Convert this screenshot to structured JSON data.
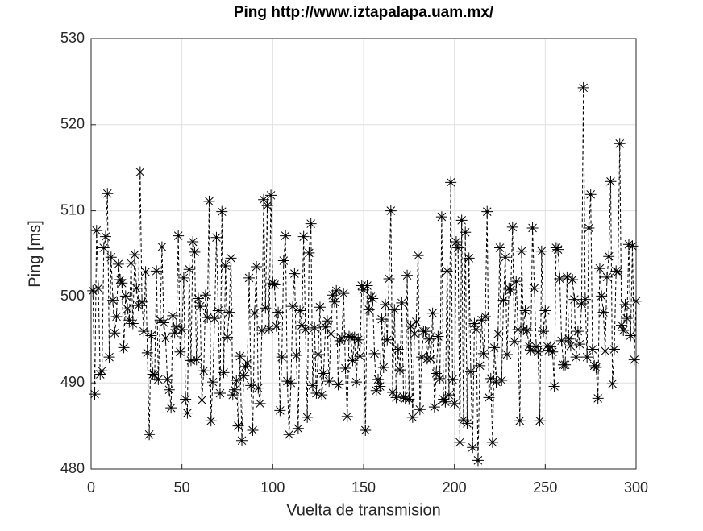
{
  "chart_data": {
    "type": "line",
    "title": "Ping http://www.iztapalapa.uam.mx/",
    "xlabel": "Vuelta de transmision",
    "ylabel": "Ping [ms]",
    "x": [
      1,
      2,
      3,
      4,
      5,
      6,
      7,
      8,
      9,
      10,
      11,
      12,
      13,
      14,
      15,
      16,
      17,
      18,
      19,
      20,
      21,
      22,
      23,
      24,
      25,
      26,
      27,
      28,
      29,
      30,
      31,
      32,
      33,
      34,
      35,
      36,
      37,
      38,
      39,
      40,
      41,
      42,
      43,
      44,
      45,
      46,
      47,
      48,
      49,
      50,
      51,
      52,
      53,
      54,
      55,
      56,
      57,
      58,
      59,
      60,
      61,
      62,
      63,
      64,
      65,
      66,
      67,
      68,
      69,
      70,
      71,
      72,
      73,
      74,
      75,
      76,
      77,
      78,
      79,
      80,
      81,
      82,
      83,
      84,
      85,
      86,
      87,
      88,
      89,
      90,
      91,
      92,
      93,
      94,
      95,
      96,
      97,
      98,
      99,
      100,
      101,
      102,
      103,
      104,
      105,
      106,
      107,
      108,
      109,
      110,
      111,
      112,
      113,
      114,
      115,
      116,
      117,
      118,
      119,
      120,
      121,
      122,
      123,
      124,
      125,
      126,
      127,
      128,
      129,
      130,
      131,
      132,
      133,
      134,
      135,
      136,
      137,
      138,
      139,
      140,
      141,
      142,
      143,
      144,
      145,
      146,
      147,
      148,
      149,
      150,
      151,
      152,
      153,
      154,
      155,
      156,
      157,
      158,
      159,
      160,
      161,
      162,
      163,
      164,
      165,
      166,
      167,
      168,
      169,
      170,
      171,
      172,
      173,
      174,
      175,
      176,
      177,
      178,
      179,
      180,
      181,
      182,
      183,
      184,
      185,
      186,
      187,
      188,
      189,
      190,
      191,
      192,
      193,
      194,
      195,
      196,
      197,
      198,
      199,
      200,
      201,
      202,
      203,
      204,
      205,
      206,
      207,
      208,
      209,
      210,
      211,
      212,
      213,
      214,
      215,
      216,
      217,
      218,
      219,
      220,
      221,
      222,
      223,
      224,
      225,
      226,
      227,
      228,
      229,
      230,
      231,
      232,
      233,
      234,
      235,
      236,
      237,
      238,
      239,
      240,
      241,
      242,
      243,
      244,
      245,
      246,
      247,
      248,
      249,
      250,
      251,
      252,
      253,
      254,
      255,
      256,
      257,
      258,
      259,
      260,
      261,
      262,
      263,
      264,
      265,
      266,
      267,
      268,
      269,
      270,
      271,
      272,
      273,
      274,
      275,
      276,
      277,
      278,
      279,
      280,
      281,
      282,
      283,
      284,
      285,
      286,
      287,
      288,
      289,
      290,
      291,
      292,
      293,
      294,
      295,
      296,
      297,
      298,
      299,
      300
    ],
    "values": [
      500.7,
      488.7,
      507.7,
      501,
      491,
      491.4,
      505.7,
      507,
      512,
      493,
      504.6,
      499.6,
      495.8,
      497.7,
      503.8,
      502,
      501.6,
      494.1,
      500.1,
      498.6,
      497.3,
      503.9,
      496.9,
      504.9,
      501,
      499,
      514.5,
      499.4,
      496,
      502.9,
      493.5,
      484,
      495.5,
      491,
      490.9,
      503,
      490.4,
      497.3,
      505.8,
      497,
      495.2,
      490.4,
      489.2,
      487.1,
      497.8,
      495.8,
      496.5,
      507.1,
      493.6,
      496.2,
      502.2,
      488.1,
      486.5,
      503.2,
      492.6,
      506.4,
      505.2,
      492.7,
      499.8,
      498.9,
      488,
      491.4,
      500.2,
      497.6,
      511.1,
      485.6,
      490.1,
      497.5,
      506.9,
      498.4,
      488.8,
      509.9,
      491.2,
      503.6,
      495.3,
      498.2,
      504.5,
      488.6,
      489.2,
      490.3,
      485,
      493.1,
      483.3,
      490.8,
      491.9,
      492.3,
      502.2,
      489.7,
      484.5,
      498.1,
      503.5,
      489.4,
      487.6,
      496.1,
      511.3,
      498.7,
      510.6,
      496.3,
      511.8,
      501.6,
      501.4,
      496.6,
      498.2,
      486.8,
      493,
      504.2,
      507.1,
      490.2,
      484,
      490,
      498.9,
      502.7,
      493.2,
      484.7,
      498.4,
      496.7,
      507,
      496.2,
      486,
      505.1,
      508.5,
      489.7,
      496.4,
      488.8,
      493.3,
      498.8,
      488.6,
      491.1,
      496.5,
      497.2,
      490.2,
      495.7,
      500.2,
      499.4,
      500.7,
      489.8,
      494.9,
      495.2,
      500.4,
      491.7,
      486.1,
      495.4,
      495.3,
      492.6,
      495.3,
      490.1,
      495,
      493.1,
      501.3,
      500.8,
      484.5,
      501.3,
      498.5,
      500,
      499.8,
      493.4,
      489.1,
      490.4,
      489.6,
      497.4,
      491.8,
      499.1,
      495,
      502.1,
      510,
      488.9,
      498.5,
      488.3,
      493.9,
      491.5,
      499.3,
      488.4,
      488.2,
      502.5,
      488.1,
      496.6,
      486,
      495.7,
      497.1,
      504.8,
      486.9,
      493,
      496,
      496,
      492.8,
      495.1,
      492.8,
      498.1,
      487.2,
      491.1,
      495.4,
      490.5,
      509.3,
      488.1,
      487.8,
      503,
      488.6,
      513.3,
      490.4,
      487.6,
      506.4,
      505.7,
      483.1,
      508.9,
      485.7,
      507.5,
      485.3,
      504.5,
      491.3,
      482.5,
      496.9,
      496.2,
      481,
      492,
      497.3,
      493.4,
      497.7,
      509.9,
      488.3,
      490.5,
      483.1,
      494.1,
      490.1,
      495.7,
      505.7,
      490.3,
      499.6,
      504.6,
      493.3,
      501,
      500.8,
      508.1,
      494.8,
      501.8,
      496.2,
      485.6,
      505.3,
      496.2,
      498.4,
      496.1,
      494.3,
      493.8,
      508,
      501,
      494.2,
      493.6,
      485.6,
      505.3,
      496,
      498.4,
      494.3,
      493.8,
      494.2,
      493.6,
      489.6,
      505.7,
      505.5,
      502.1,
      494.9,
      492.1,
      492.1,
      502.3,
      495.1,
      494.3,
      502,
      499.7,
      493,
      496,
      494.5,
      499.2,
      524.3,
      499.7,
      493,
      508,
      511.9,
      493.9,
      492,
      491.8,
      488.2,
      503.3,
      500.1,
      498.2,
      493.7,
      502.3,
      504.7,
      513.4,
      489.9,
      493.9,
      503,
      502.9,
      517.8,
      496.7,
      496.1,
      499.1,
      497.5,
      506.1,
      495.5,
      505.9,
      492.7,
      499.5
    ],
    "color": "#000000",
    "line_style": "dashed",
    "marker": "asterisk",
    "xlim": [
      0,
      300
    ],
    "xticks": [
      0,
      50,
      100,
      150,
      200,
      250,
      300
    ],
    "ylim": [
      480,
      530
    ],
    "yticks": [
      480,
      490,
      500,
      510,
      520,
      530
    ],
    "grid": true
  }
}
